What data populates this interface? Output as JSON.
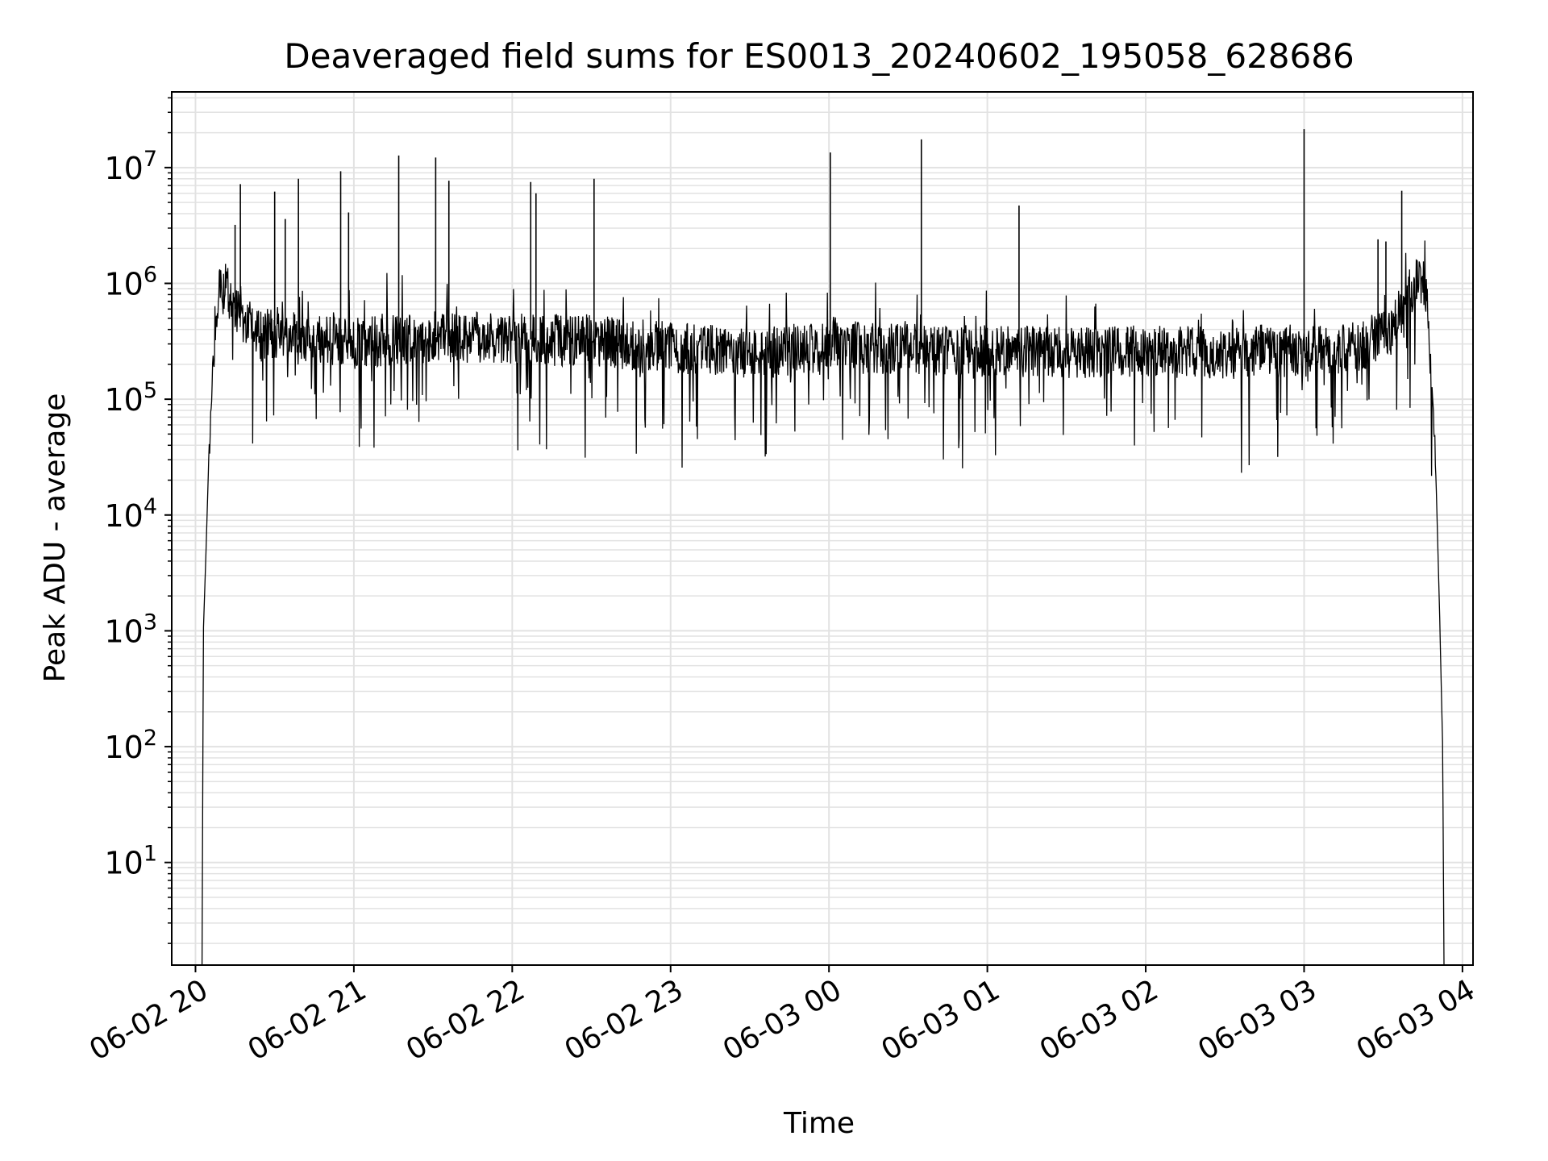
{
  "chart_data": {
    "type": "line",
    "title": "Deaveraged field sums for ES0013_20240602_195058_628686",
    "xlabel": "Time",
    "ylabel": "Peak ADU - average",
    "yscale": "log",
    "ylim": [
      1.3,
      45000000
    ],
    "xlim": [
      "2024-06-02 19:51",
      "2024-06-03 04:04"
    ],
    "grid": true,
    "x_ticks": [
      "06-02 20",
      "06-02 21",
      "06-02 22",
      "06-02 23",
      "06-03 00",
      "06-03 01",
      "06-03 02",
      "06-03 03",
      "06-03 04"
    ],
    "y_ticks": [
      {
        "value": 10,
        "base": "10",
        "exp": "1"
      },
      {
        "value": 100,
        "base": "10",
        "exp": "2"
      },
      {
        "value": 1000,
        "base": "10",
        "exp": "3"
      },
      {
        "value": 10000,
        "base": "10",
        "exp": "4"
      },
      {
        "value": 100000,
        "base": "10",
        "exp": "5"
      },
      {
        "value": 1000000,
        "base": "10",
        "exp": "6"
      },
      {
        "value": 10000000,
        "base": "10",
        "exp": "7"
      }
    ],
    "line_color": "#000000",
    "series": [
      {
        "x": [
          "2024-06-02 20:02:30",
          "2024-06-02 20:03:00",
          "2024-06-02 20:04:00",
          "2024-06-02 20:05:00",
          "2024-06-02 20:06:00",
          "2024-06-02 20:07:00",
          "2024-06-02 20:08:00",
          "2024-06-02 20:09:00",
          "2024-06-02 20:10:00",
          "2024-06-02 20:12:00",
          "2024-06-02 20:15:00",
          "2024-06-02 20:20:00",
          "2024-06-02 20:25:00",
          "2024-06-02 20:30:00",
          "2024-06-02 20:40:00",
          "2024-06-02 21:00:00",
          "2024-06-02 21:30:00",
          "2024-06-02 22:00:00",
          "2024-06-02 22:30:00",
          "2024-06-02 23:00:00",
          "2024-06-02 23:30:00",
          "2024-06-03 00:00:00",
          "2024-06-03 00:30:00",
          "2024-06-03 01:00:00",
          "2024-06-03 01:30:00",
          "2024-06-03 02:00:00",
          "2024-06-03 02:30:00",
          "2024-06-03 03:00:00",
          "2024-06-03 03:20:00",
          "2024-06-03 03:30:00",
          "2024-06-03 03:37:00",
          "2024-06-03 03:40:00",
          "2024-06-03 03:43:00",
          "2024-06-03 03:46:00",
          "2024-06-03 03:48:00",
          "2024-06-03 03:50:00",
          "2024-06-03 03:51:30",
          "2024-06-03 03:52:30",
          "2024-06-03 03:53:00"
        ],
        "y": [
          1.3,
          1000,
          5000,
          30000,
          100000,
          300000,
          600000,
          800000,
          850000,
          900000,
          600000,
          450000,
          350000,
          380000,
          320000,
          300000,
          350000,
          330000,
          320000,
          280000,
          250000,
          280000,
          270000,
          260000,
          250000,
          260000,
          250000,
          260000,
          280000,
          350000,
          500000,
          800000,
          1000000,
          900000,
          200000,
          20000,
          1000,
          100,
          1.3
        ]
      }
    ],
    "spikes": [
      {
        "x": "2024-06-02 20:17:00",
        "y": 7200000
      },
      {
        "x": "2024-06-02 20:15:00",
        "y": 3200000
      },
      {
        "x": "2024-06-02 20:30:00",
        "y": 6200000
      },
      {
        "x": "2024-06-02 20:34:00",
        "y": 3600000
      },
      {
        "x": "2024-06-02 20:39:00",
        "y": 8000000
      },
      {
        "x": "2024-06-02 20:55:00",
        "y": 9300000
      },
      {
        "x": "2024-06-02 20:58:00",
        "y": 4100000
      },
      {
        "x": "2024-06-02 21:17:00",
        "y": 12700000
      },
      {
        "x": "2024-06-02 21:31:00",
        "y": 12200000
      },
      {
        "x": "2024-06-02 21:36:00",
        "y": 7700000
      },
      {
        "x": "2024-06-02 22:07:00",
        "y": 7500000
      },
      {
        "x": "2024-06-02 22:09:00",
        "y": 6000000
      },
      {
        "x": "2024-06-02 22:31:00",
        "y": 8000000
      },
      {
        "x": "2024-06-03 00:00:30",
        "y": 13500000
      },
      {
        "x": "2024-06-03 00:35:00",
        "y": 17500000
      },
      {
        "x": "2024-06-03 01:12:00",
        "y": 4700000
      },
      {
        "x": "2024-06-03 03:00:00",
        "y": 21500000
      },
      {
        "x": "2024-06-03 03:28:00",
        "y": 2400000
      },
      {
        "x": "2024-06-03 03:31:00",
        "y": 2300000
      },
      {
        "x": "2024-06-03 03:37:00",
        "y": 6300000
      }
    ]
  }
}
